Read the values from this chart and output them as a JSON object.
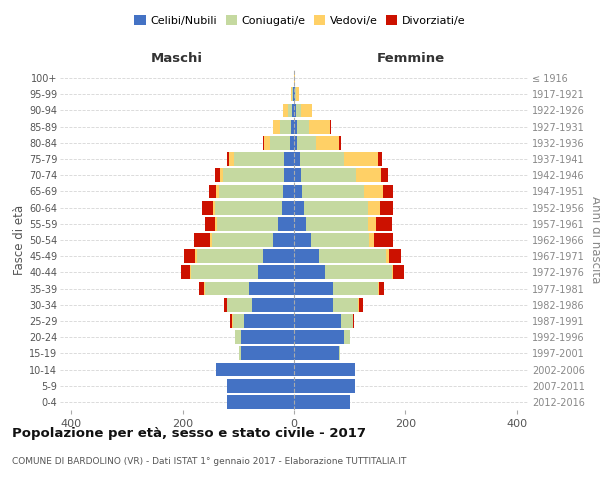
{
  "age_groups": [
    "0-4",
    "5-9",
    "10-14",
    "15-19",
    "20-24",
    "25-29",
    "30-34",
    "35-39",
    "40-44",
    "45-49",
    "50-54",
    "55-59",
    "60-64",
    "65-69",
    "70-74",
    "75-79",
    "80-84",
    "85-89",
    "90-94",
    "95-99",
    "100+"
  ],
  "birth_years": [
    "2012-2016",
    "2007-2011",
    "2002-2006",
    "1997-2001",
    "1992-1996",
    "1987-1991",
    "1982-1986",
    "1977-1981",
    "1972-1976",
    "1967-1971",
    "1962-1966",
    "1957-1961",
    "1952-1956",
    "1947-1951",
    "1942-1946",
    "1937-1941",
    "1932-1936",
    "1927-1931",
    "1922-1926",
    "1917-1921",
    "≤ 1916"
  ],
  "male": {
    "celibi": [
      120,
      120,
      140,
      95,
      95,
      90,
      75,
      80,
      65,
      55,
      38,
      28,
      22,
      20,
      18,
      18,
      8,
      5,
      3,
      1,
      0
    ],
    "coniugati": [
      0,
      0,
      0,
      3,
      10,
      20,
      45,
      80,
      120,
      120,
      110,
      110,
      120,
      115,
      110,
      90,
      35,
      20,
      8,
      2,
      0
    ],
    "vedovi": [
      0,
      0,
      0,
      0,
      0,
      2,
      1,
      1,
      2,
      2,
      2,
      3,
      3,
      5,
      5,
      8,
      10,
      12,
      8,
      2,
      0
    ],
    "divorziati": [
      0,
      0,
      0,
      0,
      0,
      2,
      5,
      10,
      15,
      20,
      30,
      18,
      20,
      12,
      8,
      5,
      2,
      0,
      0,
      0,
      0
    ]
  },
  "female": {
    "nubili": [
      100,
      110,
      110,
      80,
      90,
      85,
      70,
      70,
      55,
      45,
      30,
      22,
      18,
      15,
      12,
      10,
      5,
      5,
      3,
      1,
      0
    ],
    "coniugate": [
      0,
      0,
      0,
      3,
      10,
      20,
      45,
      80,
      120,
      120,
      105,
      110,
      115,
      110,
      100,
      80,
      35,
      22,
      10,
      3,
      0
    ],
    "vedove": [
      0,
      0,
      0,
      0,
      0,
      1,
      1,
      2,
      3,
      5,
      8,
      15,
      22,
      35,
      45,
      60,
      40,
      38,
      20,
      5,
      1
    ],
    "divorziate": [
      0,
      0,
      0,
      0,
      0,
      2,
      8,
      10,
      20,
      22,
      35,
      28,
      22,
      18,
      12,
      8,
      5,
      2,
      0,
      0,
      0
    ]
  },
  "colors": {
    "celibi_nubili": "#4472C4",
    "coniugati": "#C5D9A0",
    "vedovi": "#FFD066",
    "divorziati": "#CC1100"
  },
  "title": "Popolazione per età, sesso e stato civile - 2017",
  "subtitle": "COMUNE DI BARDOLINO (VR) - Dati ISTAT 1° gennaio 2017 - Elaborazione TUTTITALIA.IT",
  "xlabel_left": "Maschi",
  "xlabel_right": "Femmine",
  "ylabel_left": "Fasce di età",
  "ylabel_right": "Anni di nascita",
  "xlim": 420,
  "bg_color": "#ffffff",
  "grid_color": "#cccccc"
}
